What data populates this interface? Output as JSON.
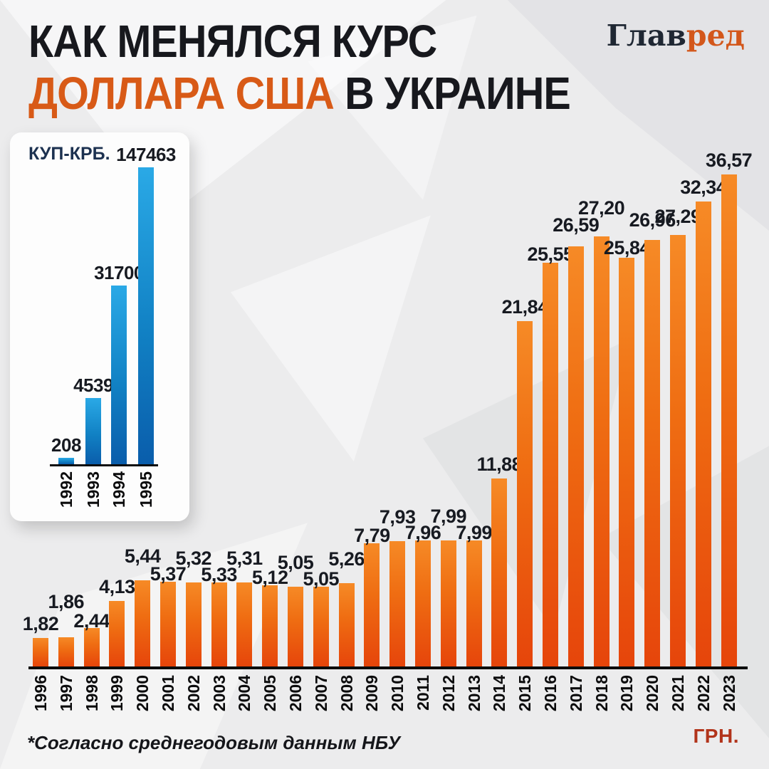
{
  "header": {
    "title_line1": "КАК МЕНЯЛСЯ КУРС",
    "title_line2_orange": "ДОЛЛАРА США",
    "title_line2_dark": " В УКРАИНЕ",
    "logo_dark": "Глав",
    "logo_orange": "ред"
  },
  "colors": {
    "accent_orange": "#d85a17",
    "bar_orange_top": "#f68a26",
    "bar_orange_bottom": "#e6450b",
    "bar_blue_top": "#2aa9e6",
    "bar_blue_bottom": "#0a5dab",
    "currency_red": "#b2341b",
    "background": "#ececed"
  },
  "footer": {
    "note": "*Согласно среднегодовым данным НБУ",
    "currency_label": "ГРН."
  },
  "chart_data": [
    {
      "type": "bar",
      "title": "КУП-КРБ.",
      "categories": [
        "1992",
        "1993",
        "1994",
        "1995"
      ],
      "values": [
        208,
        4539,
        31700,
        147463
      ],
      "display_values": [
        "208",
        "4539",
        "31700",
        "147463"
      ],
      "ylabel": "КУП-КРБ.",
      "grid": false,
      "note": "inset chart, non-linear artistic scale"
    },
    {
      "type": "bar",
      "unit": "ГРН.",
      "categories": [
        "1996",
        "1997",
        "1998",
        "1999",
        "2000",
        "2001",
        "2002",
        "2003",
        "2004",
        "2005",
        "2006",
        "2007",
        "2008",
        "2009",
        "2010",
        "2011",
        "2012",
        "2013",
        "2014",
        "2015",
        "2016",
        "2017",
        "2018",
        "2019",
        "2020",
        "2021",
        "2022",
        "2023"
      ],
      "values": [
        1.82,
        1.86,
        2.44,
        4.13,
        5.44,
        5.37,
        5.32,
        5.33,
        5.31,
        5.12,
        5.05,
        5.05,
        5.26,
        7.79,
        7.93,
        7.96,
        7.99,
        7.99,
        11.88,
        21.84,
        25.55,
        26.59,
        27.2,
        25.84,
        26.96,
        27.29,
        32.34,
        36.57
      ],
      "display_values": [
        "1,82",
        "1,86",
        "2,44",
        "4,13",
        "5,44",
        "5,37",
        "5,32",
        "5,33",
        "5,31",
        "5,12",
        "5,05",
        "5,05",
        "5,26",
        "7,79",
        "7,93",
        "7,96",
        "7,99",
        "7,99",
        "11,88",
        "21,84",
        "25,55",
        "26,59",
        "27,20",
        "25,84",
        "26,96",
        "27,29",
        "32,34",
        "36,57"
      ],
      "grid": false,
      "source_note": "*Согласно среднегодовым данным НБУ"
    }
  ]
}
